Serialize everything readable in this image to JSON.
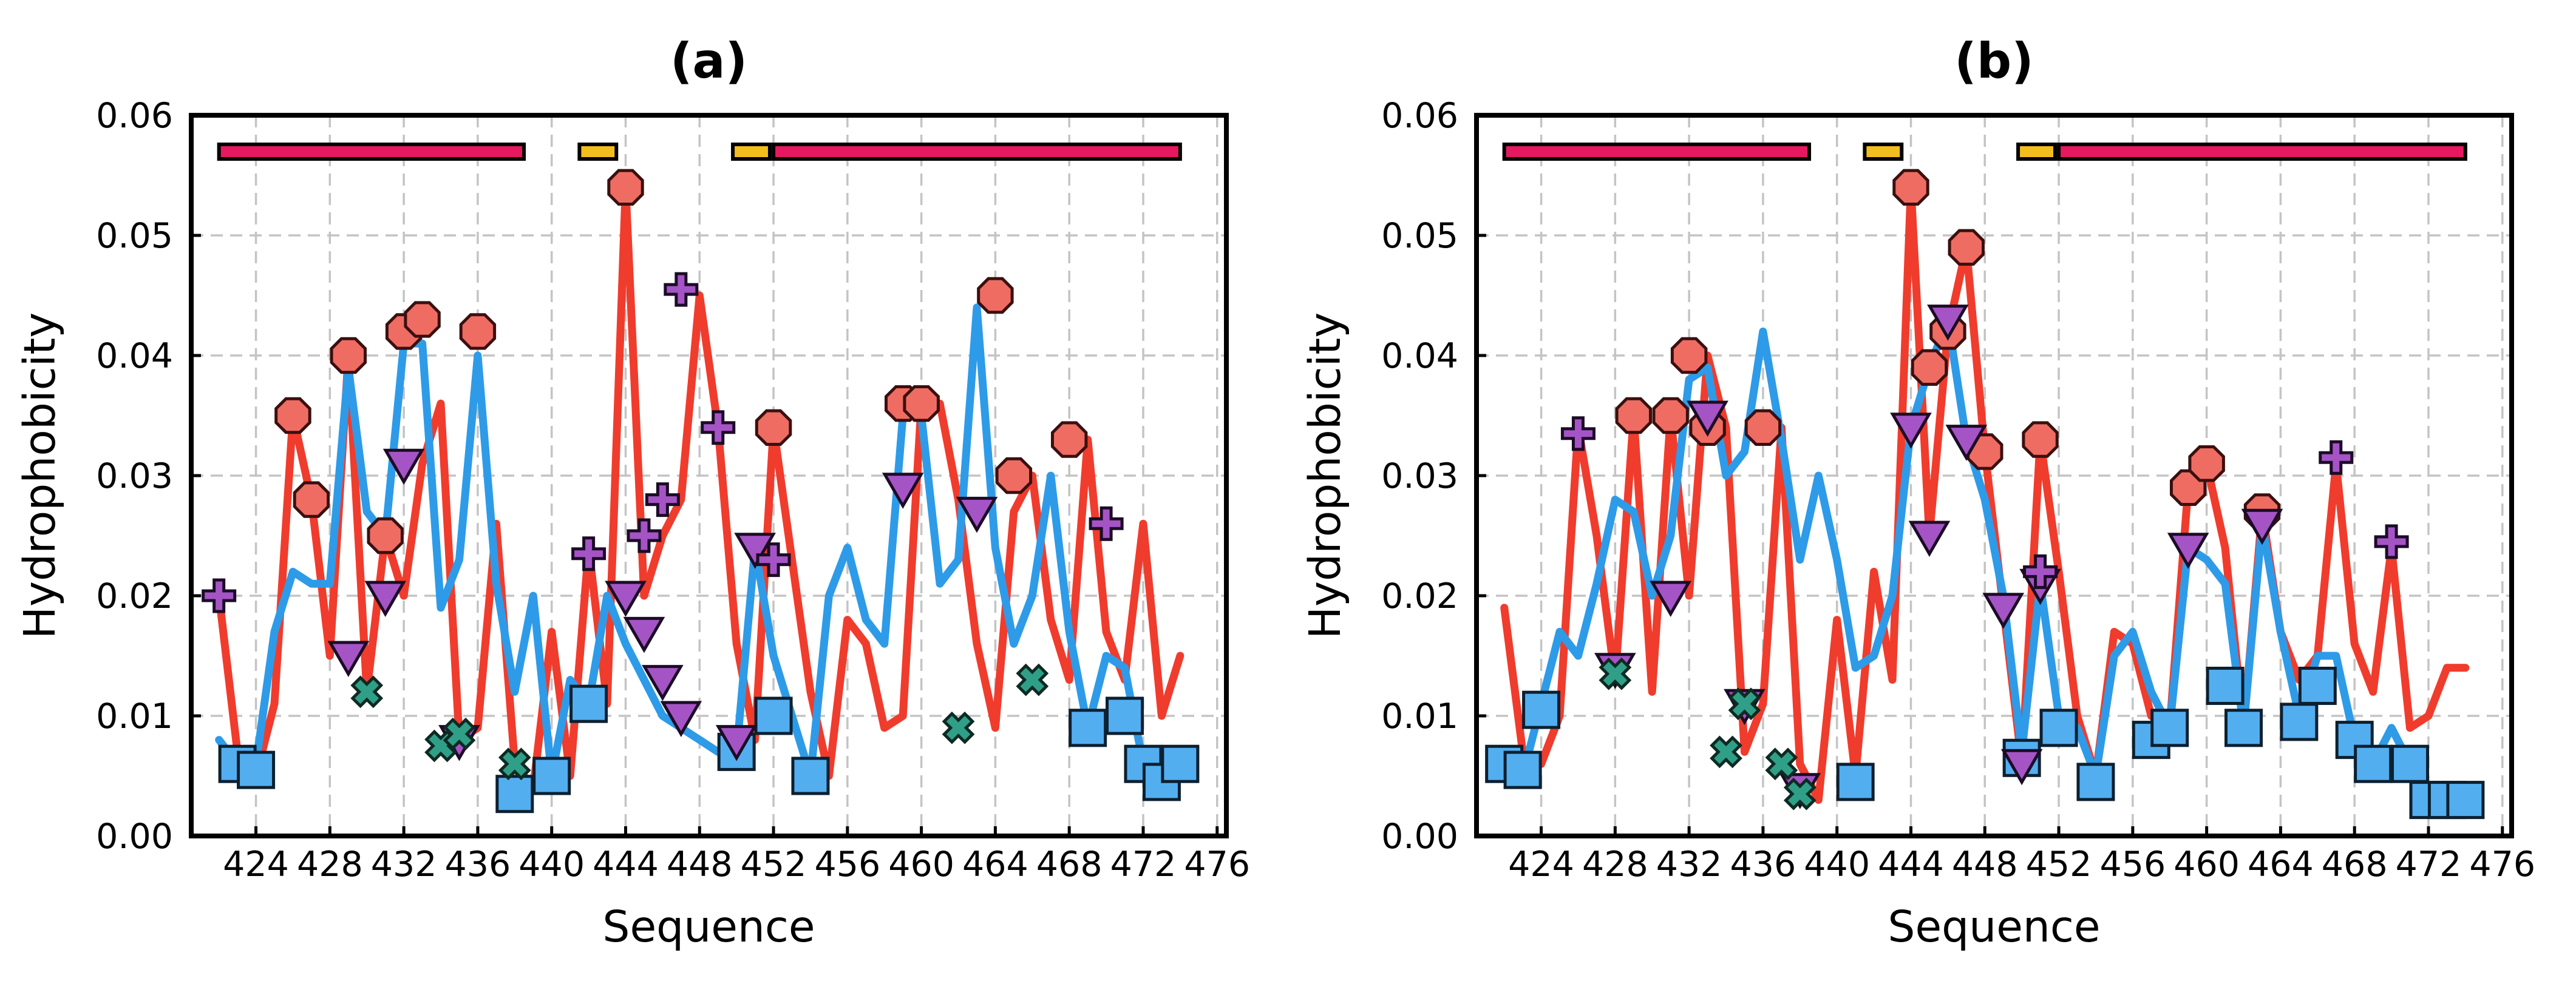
{
  "colors": {
    "red_line": "#f03c2d",
    "blue_line": "#2e9be8",
    "octagon_fill": "#ef6c62",
    "square_fill": "#53aef0",
    "triangle_fill": "#a554c5",
    "cross_fill": "#2f9f88",
    "plus_fill": "#a554c5",
    "bar_pink": "#e6185f",
    "bar_yellow": "#f2be1e"
  },
  "chart_data": [
    {
      "type": "line",
      "title": "(a)",
      "xlabel": "Sequence",
      "ylabel": "Hydrophobicity",
      "xlim": [
        420.5,
        476.5
      ],
      "ylim": [
        0,
        0.06
      ],
      "xticks": [
        424,
        428,
        432,
        436,
        440,
        444,
        448,
        452,
        456,
        460,
        464,
        468,
        472,
        476
      ],
      "yticks": [
        0.0,
        0.01,
        0.02,
        0.03,
        0.04,
        0.05,
        0.06
      ],
      "ytick_labels": [
        "0.00",
        "0.01",
        "0.02",
        "0.03",
        "0.04",
        "0.05",
        "0.06"
      ],
      "grid": true,
      "series": [
        {
          "name": "red",
          "x": [
            422,
            423,
            424,
            425,
            426,
            427,
            428,
            429,
            430,
            431,
            432,
            433,
            434,
            435,
            436,
            437,
            438,
            439,
            440,
            441,
            442,
            443,
            444,
            445,
            446,
            447,
            448,
            449,
            450,
            451,
            452,
            453,
            454,
            455,
            456,
            457,
            458,
            459,
            460,
            461,
            462,
            463,
            464,
            465,
            466,
            467,
            468,
            469,
            470,
            471,
            472,
            473,
            474
          ],
          "y": [
            0.02,
            0.007,
            0.005,
            0.011,
            0.035,
            0.028,
            0.015,
            0.04,
            0.012,
            0.025,
            0.02,
            0.031,
            0.036,
            0.008,
            0.009,
            0.026,
            0.006,
            0.004,
            0.017,
            0.005,
            0.024,
            0.011,
            0.054,
            0.02,
            0.025,
            0.028,
            0.045,
            0.034,
            0.016,
            0.008,
            0.034,
            0.023,
            0.012,
            0.005,
            0.018,
            0.016,
            0.009,
            0.01,
            0.036,
            0.036,
            0.028,
            0.016,
            0.009,
            0.027,
            0.03,
            0.018,
            0.013,
            0.033,
            0.017,
            0.013,
            0.026,
            0.01,
            0.015
          ]
        },
        {
          "name": "blue",
          "x": [
            422,
            423,
            424,
            425,
            426,
            427,
            428,
            429,
            430,
            431,
            432,
            433,
            434,
            435,
            436,
            437,
            438,
            439,
            440,
            441,
            442,
            443,
            444,
            445,
            446,
            447,
            448,
            449,
            450,
            451,
            452,
            453,
            454,
            455,
            456,
            457,
            458,
            459,
            460,
            461,
            462,
            463,
            464,
            465,
            466,
            467,
            468,
            469,
            470,
            471,
            472
          ],
          "y": [
            0.008,
            0.006,
            0.006,
            0.017,
            0.022,
            0.021,
            0.021,
            0.039,
            0.027,
            0.025,
            0.041,
            0.041,
            0.019,
            0.023,
            0.04,
            0.021,
            0.012,
            0.02,
            0.005,
            0.013,
            0.011,
            0.02,
            0.016,
            0.013,
            0.01,
            0.009,
            0.008,
            0.007,
            0.007,
            0.024,
            0.015,
            0.01,
            0.005,
            0.02,
            0.024,
            0.018,
            0.016,
            0.035,
            0.035,
            0.021,
            0.023,
            0.044,
            0.024,
            0.016,
            0.02,
            0.03,
            0.017,
            0.009,
            0.015,
            0.014,
            0.006
          ]
        }
      ],
      "markers": {
        "octagon": [
          [
            426,
            0.035
          ],
          [
            427,
            0.028
          ],
          [
            429,
            0.04
          ],
          [
            431,
            0.025
          ],
          [
            432,
            0.042
          ],
          [
            433,
            0.043
          ],
          [
            436,
            0.042
          ],
          [
            444,
            0.054
          ],
          [
            452,
            0.034
          ],
          [
            459,
            0.036
          ],
          [
            460,
            0.036
          ],
          [
            464,
            0.045
          ],
          [
            465,
            0.03
          ],
          [
            468,
            0.033
          ]
        ],
        "square": [
          [
            423,
            0.006
          ],
          [
            424,
            0.0055
          ],
          [
            438,
            0.0035
          ],
          [
            440,
            0.005
          ],
          [
            442,
            0.011
          ],
          [
            450,
            0.007
          ],
          [
            452,
            0.01
          ],
          [
            454,
            0.005
          ],
          [
            469,
            0.009
          ],
          [
            471,
            0.01
          ],
          [
            472,
            0.006
          ],
          [
            473,
            0.0045
          ],
          [
            474,
            0.006
          ]
        ],
        "triangle": [
          [
            429,
            0.015
          ],
          [
            431,
            0.02
          ],
          [
            432,
            0.031
          ],
          [
            435,
            0.008
          ],
          [
            444,
            0.02
          ],
          [
            445,
            0.017
          ],
          [
            446,
            0.013
          ],
          [
            447,
            0.01
          ],
          [
            450,
            0.008
          ],
          [
            451,
            0.024
          ],
          [
            459,
            0.029
          ],
          [
            463,
            0.027
          ]
        ],
        "cross": [
          [
            430,
            0.012
          ],
          [
            434,
            0.0075
          ],
          [
            435,
            0.0085
          ],
          [
            438,
            0.006
          ],
          [
            462,
            0.009
          ],
          [
            466,
            0.013
          ]
        ],
        "plus": [
          [
            422,
            0.02
          ],
          [
            442,
            0.0235
          ],
          [
            445,
            0.025
          ],
          [
            446,
            0.028
          ],
          [
            447,
            0.0455
          ],
          [
            449,
            0.034
          ],
          [
            452,
            0.023
          ],
          [
            470,
            0.026
          ]
        ]
      },
      "top_bars": [
        {
          "color": "pink",
          "start": 422,
          "end": 438.5
        },
        {
          "color": "yellow",
          "start": 441.5,
          "end": 443.5
        },
        {
          "color": "yellow",
          "start": 449.8,
          "end": 451.8
        },
        {
          "color": "pink",
          "start": 452,
          "end": 474
        }
      ]
    },
    {
      "type": "line",
      "title": "(b)",
      "xlabel": "Sequence",
      "ylabel": "Hydrophobicity",
      "xlim": [
        420.5,
        476.5
      ],
      "ylim": [
        0,
        0.06
      ],
      "xticks": [
        424,
        428,
        432,
        436,
        440,
        444,
        448,
        452,
        456,
        460,
        464,
        468,
        472,
        476
      ],
      "yticks": [
        0.0,
        0.01,
        0.02,
        0.03,
        0.04,
        0.05,
        0.06
      ],
      "ytick_labels": [
        "0.00",
        "0.01",
        "0.02",
        "0.03",
        "0.04",
        "0.05",
        "0.06"
      ],
      "grid": true,
      "series": [
        {
          "name": "red",
          "x": [
            422,
            423,
            424,
            425,
            426,
            427,
            428,
            429,
            430,
            431,
            432,
            433,
            434,
            435,
            436,
            437,
            438,
            439,
            440,
            441,
            442,
            443,
            444,
            445,
            446,
            447,
            448,
            449,
            450,
            451,
            452,
            453,
            454,
            455,
            456,
            457,
            458,
            459,
            460,
            461,
            462,
            463,
            464,
            465,
            466,
            467,
            468,
            469,
            470,
            471,
            472,
            473,
            474
          ],
          "y": [
            0.019,
            0.007,
            0.006,
            0.01,
            0.034,
            0.025,
            0.013,
            0.035,
            0.012,
            0.035,
            0.02,
            0.04,
            0.034,
            0.007,
            0.011,
            0.034,
            0.006,
            0.003,
            0.018,
            0.005,
            0.022,
            0.013,
            0.054,
            0.025,
            0.042,
            0.049,
            0.032,
            0.019,
            0.006,
            0.033,
            0.022,
            0.01,
            0.005,
            0.017,
            0.016,
            0.01,
            0.009,
            0.029,
            0.031,
            0.024,
            0.009,
            0.027,
            0.017,
            0.013,
            0.015,
            0.031,
            0.016,
            0.012,
            0.024,
            0.009,
            0.01,
            0.014,
            0.014
          ]
        },
        {
          "name": "blue",
          "x": [
            422,
            423,
            424,
            425,
            426,
            427,
            428,
            429,
            430,
            431,
            432,
            433,
            434,
            435,
            436,
            437,
            438,
            439,
            440,
            441,
            442,
            443,
            444,
            445,
            446,
            447,
            448,
            449,
            450,
            451,
            452,
            453,
            454,
            455,
            456,
            457,
            458,
            459,
            460,
            461,
            462,
            463,
            464,
            465,
            466,
            467,
            468,
            469,
            470,
            471,
            472,
            473,
            474
          ],
          "y": [
            0.006,
            0.005,
            0.011,
            0.017,
            0.015,
            0.021,
            0.028,
            0.027,
            0.02,
            0.025,
            0.038,
            0.039,
            0.03,
            0.032,
            0.042,
            0.033,
            0.023,
            0.03,
            0.023,
            0.014,
            0.015,
            0.02,
            0.034,
            0.039,
            0.043,
            0.033,
            0.028,
            0.02,
            0.007,
            0.021,
            0.01,
            0.009,
            0.005,
            0.015,
            0.017,
            0.012,
            0.009,
            0.024,
            0.023,
            0.021,
            0.009,
            0.026,
            0.017,
            0.01,
            0.015,
            0.015,
            0.008,
            0.006,
            0.009,
            0.006,
            0.004,
            0.004,
            0.004
          ]
        }
      ],
      "markers": {
        "octagon": [
          [
            429,
            0.035
          ],
          [
            431,
            0.035
          ],
          [
            432,
            0.04
          ],
          [
            433,
            0.034
          ],
          [
            436,
            0.034
          ],
          [
            444,
            0.054
          ],
          [
            445,
            0.039
          ],
          [
            446,
            0.042
          ],
          [
            447,
            0.049
          ],
          [
            448,
            0.032
          ],
          [
            451,
            0.033
          ],
          [
            459,
            0.029
          ],
          [
            460,
            0.031
          ],
          [
            463,
            0.027
          ]
        ],
        "square": [
          [
            422,
            0.006
          ],
          [
            423,
            0.0055
          ],
          [
            424,
            0.0105
          ],
          [
            441,
            0.0045
          ],
          [
            450,
            0.0065
          ],
          [
            452,
            0.009
          ],
          [
            454,
            0.0045
          ],
          [
            457,
            0.008
          ],
          [
            458,
            0.009
          ],
          [
            461,
            0.0125
          ],
          [
            462,
            0.009
          ],
          [
            465,
            0.0095
          ],
          [
            466,
            0.0125
          ],
          [
            468,
            0.008
          ],
          [
            469,
            0.006
          ],
          [
            471,
            0.006
          ],
          [
            472,
            0.003
          ],
          [
            473,
            0.003
          ],
          [
            474,
            0.003
          ]
        ],
        "triangle": [
          [
            428,
            0.014
          ],
          [
            431,
            0.02
          ],
          [
            433,
            0.035
          ],
          [
            435,
            0.011
          ],
          [
            438,
            0.004
          ],
          [
            444,
            0.034
          ],
          [
            445,
            0.025
          ],
          [
            446,
            0.043
          ],
          [
            447,
            0.033
          ],
          [
            449,
            0.019
          ],
          [
            450,
            0.006
          ],
          [
            451,
            0.021
          ],
          [
            459,
            0.024
          ],
          [
            463,
            0.026
          ]
        ],
        "cross": [
          [
            428,
            0.0135
          ],
          [
            434,
            0.007
          ],
          [
            435,
            0.011
          ],
          [
            437,
            0.006
          ],
          [
            438,
            0.0035
          ]
        ],
        "plus": [
          [
            426,
            0.0335
          ],
          [
            451,
            0.022
          ],
          [
            467,
            0.0315
          ],
          [
            470,
            0.0245
          ]
        ]
      },
      "top_bars": [
        {
          "color": "pink",
          "start": 422,
          "end": 438.5
        },
        {
          "color": "yellow",
          "start": 441.5,
          "end": 443.5
        },
        {
          "color": "yellow",
          "start": 449.8,
          "end": 451.8
        },
        {
          "color": "pink",
          "start": 452,
          "end": 474
        }
      ]
    }
  ]
}
